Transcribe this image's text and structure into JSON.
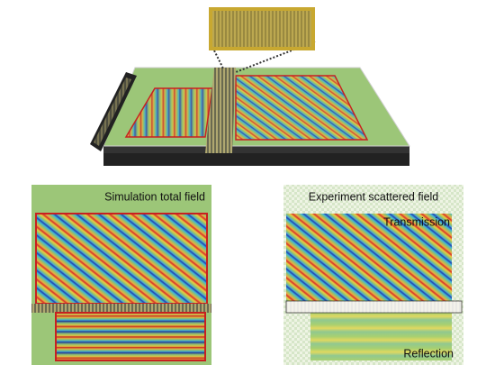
{
  "panels": {
    "simulation": {
      "title": "Simulation total field"
    },
    "experiment": {
      "title": "Experiment scattered field",
      "transmission": "Transmission",
      "reflection": "Reflection"
    }
  }
}
